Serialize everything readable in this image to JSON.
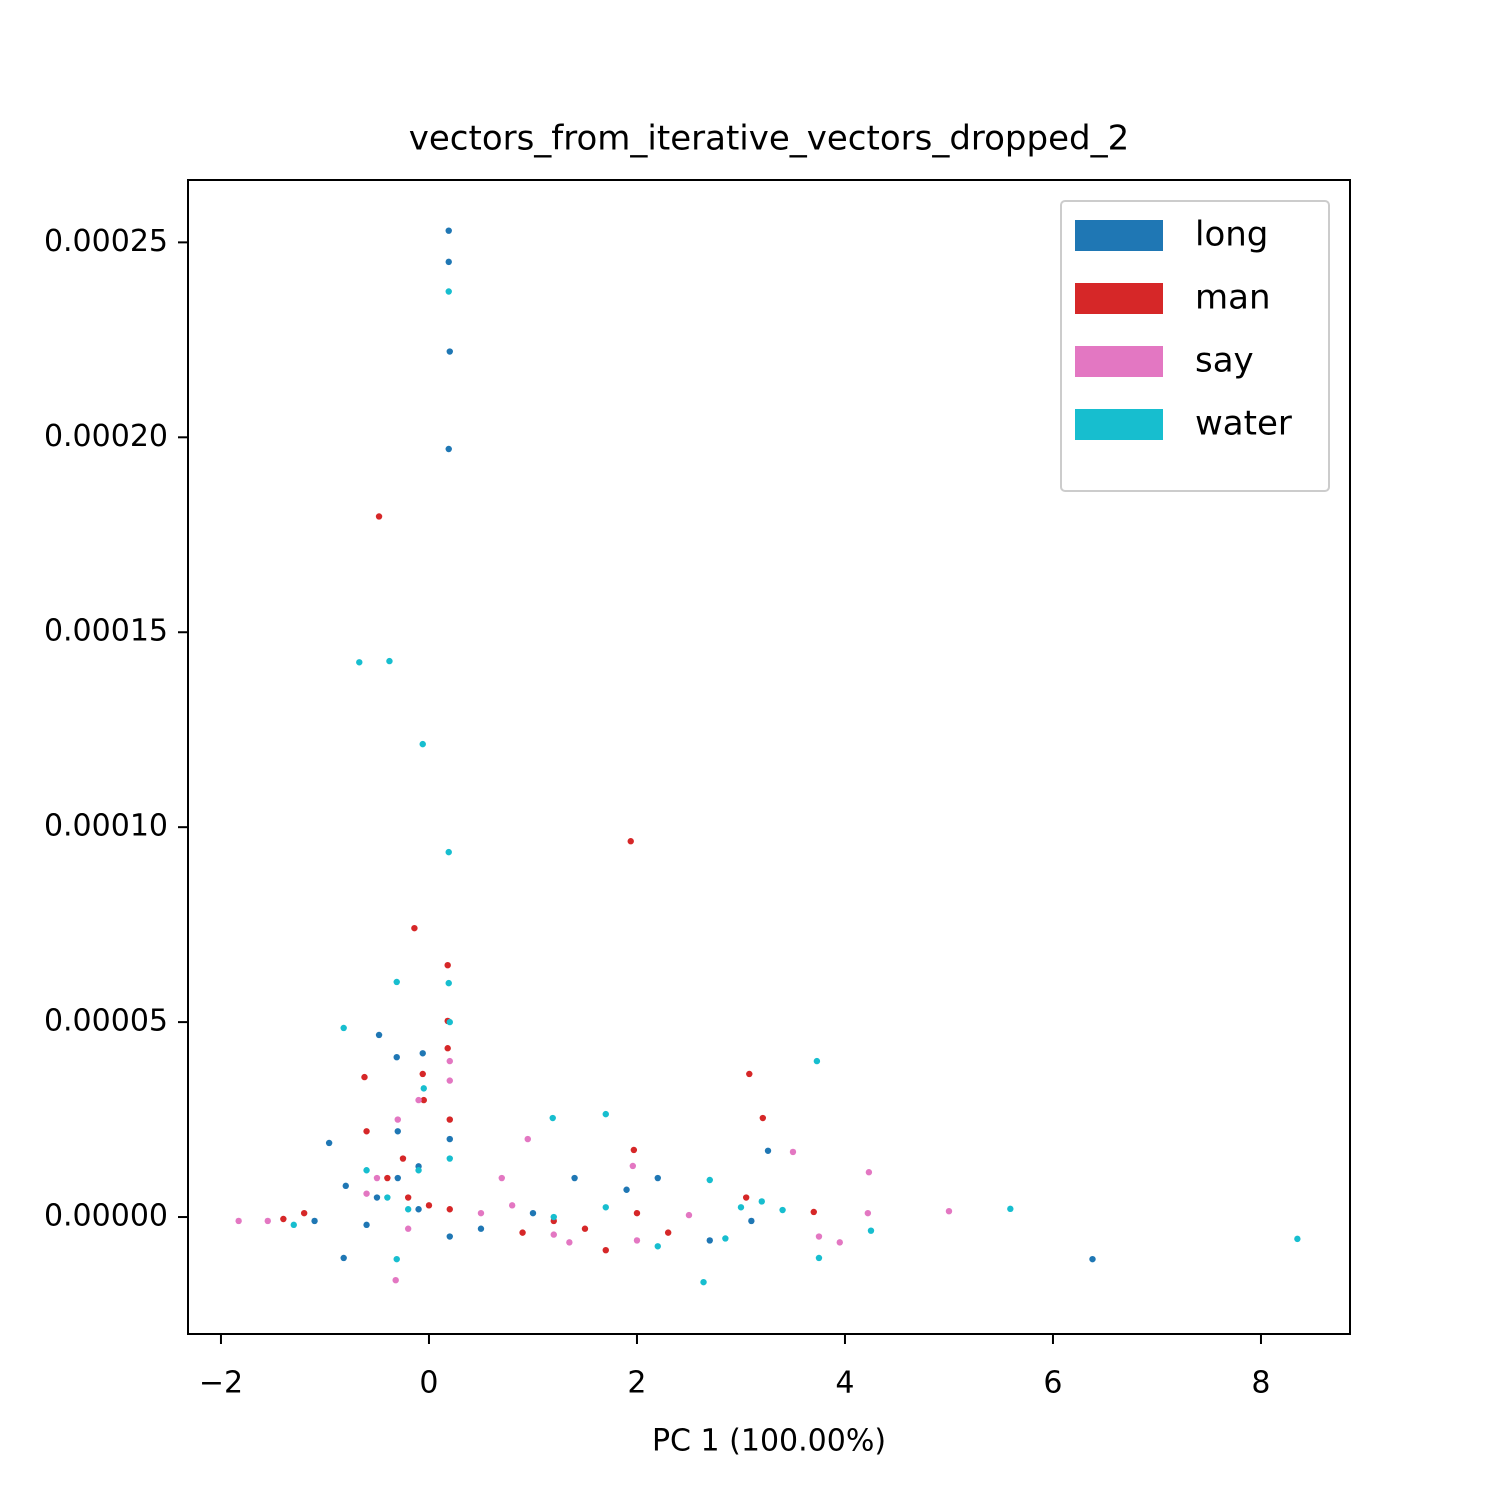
{
  "chart_data": {
    "type": "scatter",
    "title": "vectors_from_iterative_vectors_dropped_2",
    "x_label": "PC 1 (100.00%)",
    "xlim": [
      -2.317,
      8.856
    ],
    "ylim": [
      -3e-05,
      0.000266
    ],
    "xticks": [
      {
        "value": -2,
        "label": "−2"
      },
      0,
      2,
      4,
      6,
      8
    ],
    "yticks": [
      {
        "value": 0,
        "label": "0.00000"
      },
      {
        "value": 5e-05,
        "label": "0.00005"
      },
      {
        "value": 0.0001,
        "label": "0.00010"
      },
      {
        "value": 0.00015,
        "label": "0.00015"
      },
      {
        "value": 0.0002,
        "label": "0.00020"
      },
      {
        "value": 0.00025,
        "label": "0.00025"
      }
    ],
    "legend": "upper right",
    "series": [
      {
        "name": "long",
        "color": "#1f77b4",
        "x": [
          0.19,
          0.19,
          0.2,
          0.19,
          -0.48,
          -0.06,
          -0.31,
          -0.96,
          3.26,
          6.38,
          -0.82,
          -0.3,
          -0.5,
          -0.8,
          -0.1,
          0.2,
          0.2,
          1.4,
          1.9,
          2.2,
          2.7,
          3.1,
          -1.1,
          -0.6,
          0.5,
          1.0,
          -0.3,
          -0.1
        ],
        "values": [
          0.000253,
          0.000245,
          0.000222,
          0.000197,
          4.67e-05,
          4.2e-05,
          4.1e-05,
          1.9e-05,
          1.7e-05,
          -1.08e-05,
          -1.05e-05,
          1e-05,
          5e-06,
          8e-06,
          2e-06,
          2e-05,
          -5e-06,
          1e-05,
          7e-06,
          1e-05,
          -6e-06,
          -1e-06,
          -1e-06,
          -2e-06,
          -3e-06,
          1e-06,
          2.2e-05,
          1.3e-05
        ]
      },
      {
        "name": "man",
        "color": "#d62728",
        "x": [
          -0.48,
          1.94,
          -0.14,
          0.18,
          0.18,
          0.18,
          -0.62,
          3.08,
          3.21,
          -0.06,
          1.97,
          -0.4,
          -0.2,
          0.0,
          0.2,
          -1.2,
          1.2,
          1.5,
          2.0,
          2.3,
          3.05,
          3.7,
          0.9,
          -0.6,
          -0.25,
          0.2,
          -0.05,
          1.7,
          -1.4
        ],
        "values": [
          0.0001797,
          9.64e-05,
          7.41e-05,
          6.46e-05,
          5.03e-05,
          4.33e-05,
          3.59e-05,
          3.67e-05,
          2.54e-05,
          3.67e-05,
          1.72e-05,
          1e-05,
          5e-06,
          3e-06,
          2e-06,
          1e-06,
          -1e-06,
          -3e-06,
          1e-06,
          -4e-06,
          5e-06,
          1.3e-06,
          -4e-06,
          2.2e-05,
          1.5e-05,
          2.5e-05,
          3e-05,
          -8.5e-06,
          -5e-07
        ]
      },
      {
        "name": "say",
        "color": "#e377c2",
        "x": [
          -0.32,
          5.0,
          4.23,
          3.5,
          0.95,
          1.96,
          -1.83,
          -1.55,
          -0.5,
          -0.3,
          -0.1,
          0.2,
          0.2,
          0.7,
          0.8,
          1.35,
          2.0,
          3.95,
          3.75,
          4.22,
          -0.6,
          1.2,
          0.5,
          -0.2,
          2.5
        ],
        "values": [
          -1.62e-05,
          1.5e-06,
          1.15e-05,
          1.67e-05,
          2e-05,
          1.31e-05,
          -1e-06,
          -1e-06,
          1e-05,
          2.5e-05,
          3e-05,
          3.5e-05,
          4e-05,
          1e-05,
          3e-06,
          -6.5e-06,
          -6e-06,
          -6.5e-06,
          -5e-06,
          1e-06,
          6e-06,
          -4.5e-06,
          1e-06,
          -3e-06,
          5e-07
        ]
      },
      {
        "name": "water",
        "color": "#17becf",
        "x": [
          0.19,
          -0.67,
          -0.38,
          -0.06,
          0.19,
          -0.31,
          0.19,
          -0.82,
          3.73,
          1.19,
          1.7,
          8.35,
          5.59,
          2.64,
          -0.31,
          -0.1,
          0.2,
          -0.4,
          -0.2,
          -1.3,
          -0.6,
          1.2,
          1.7,
          2.2,
          2.7,
          3.0,
          3.2,
          3.75,
          4.25,
          2.85,
          0.2,
          -0.05,
          3.4
        ],
        "values": [
          0.0002374,
          0.0001423,
          0.0001426,
          0.0001213,
          9.36e-05,
          6.03e-05,
          6e-05,
          4.85e-05,
          4e-05,
          2.54e-05,
          2.64e-05,
          -5.6e-06,
          2.1e-06,
          -1.67e-05,
          -1.08e-05,
          1.2e-05,
          1.5e-05,
          5e-06,
          2e-06,
          -2e-06,
          1.2e-05,
          0,
          2.5e-06,
          -7.5e-06,
          9.5e-06,
          2.5e-06,
          4e-06,
          -1.05e-05,
          -3.5e-06,
          -5.5e-06,
          5e-05,
          3.3e-05,
          1.8e-06
        ]
      }
    ]
  }
}
